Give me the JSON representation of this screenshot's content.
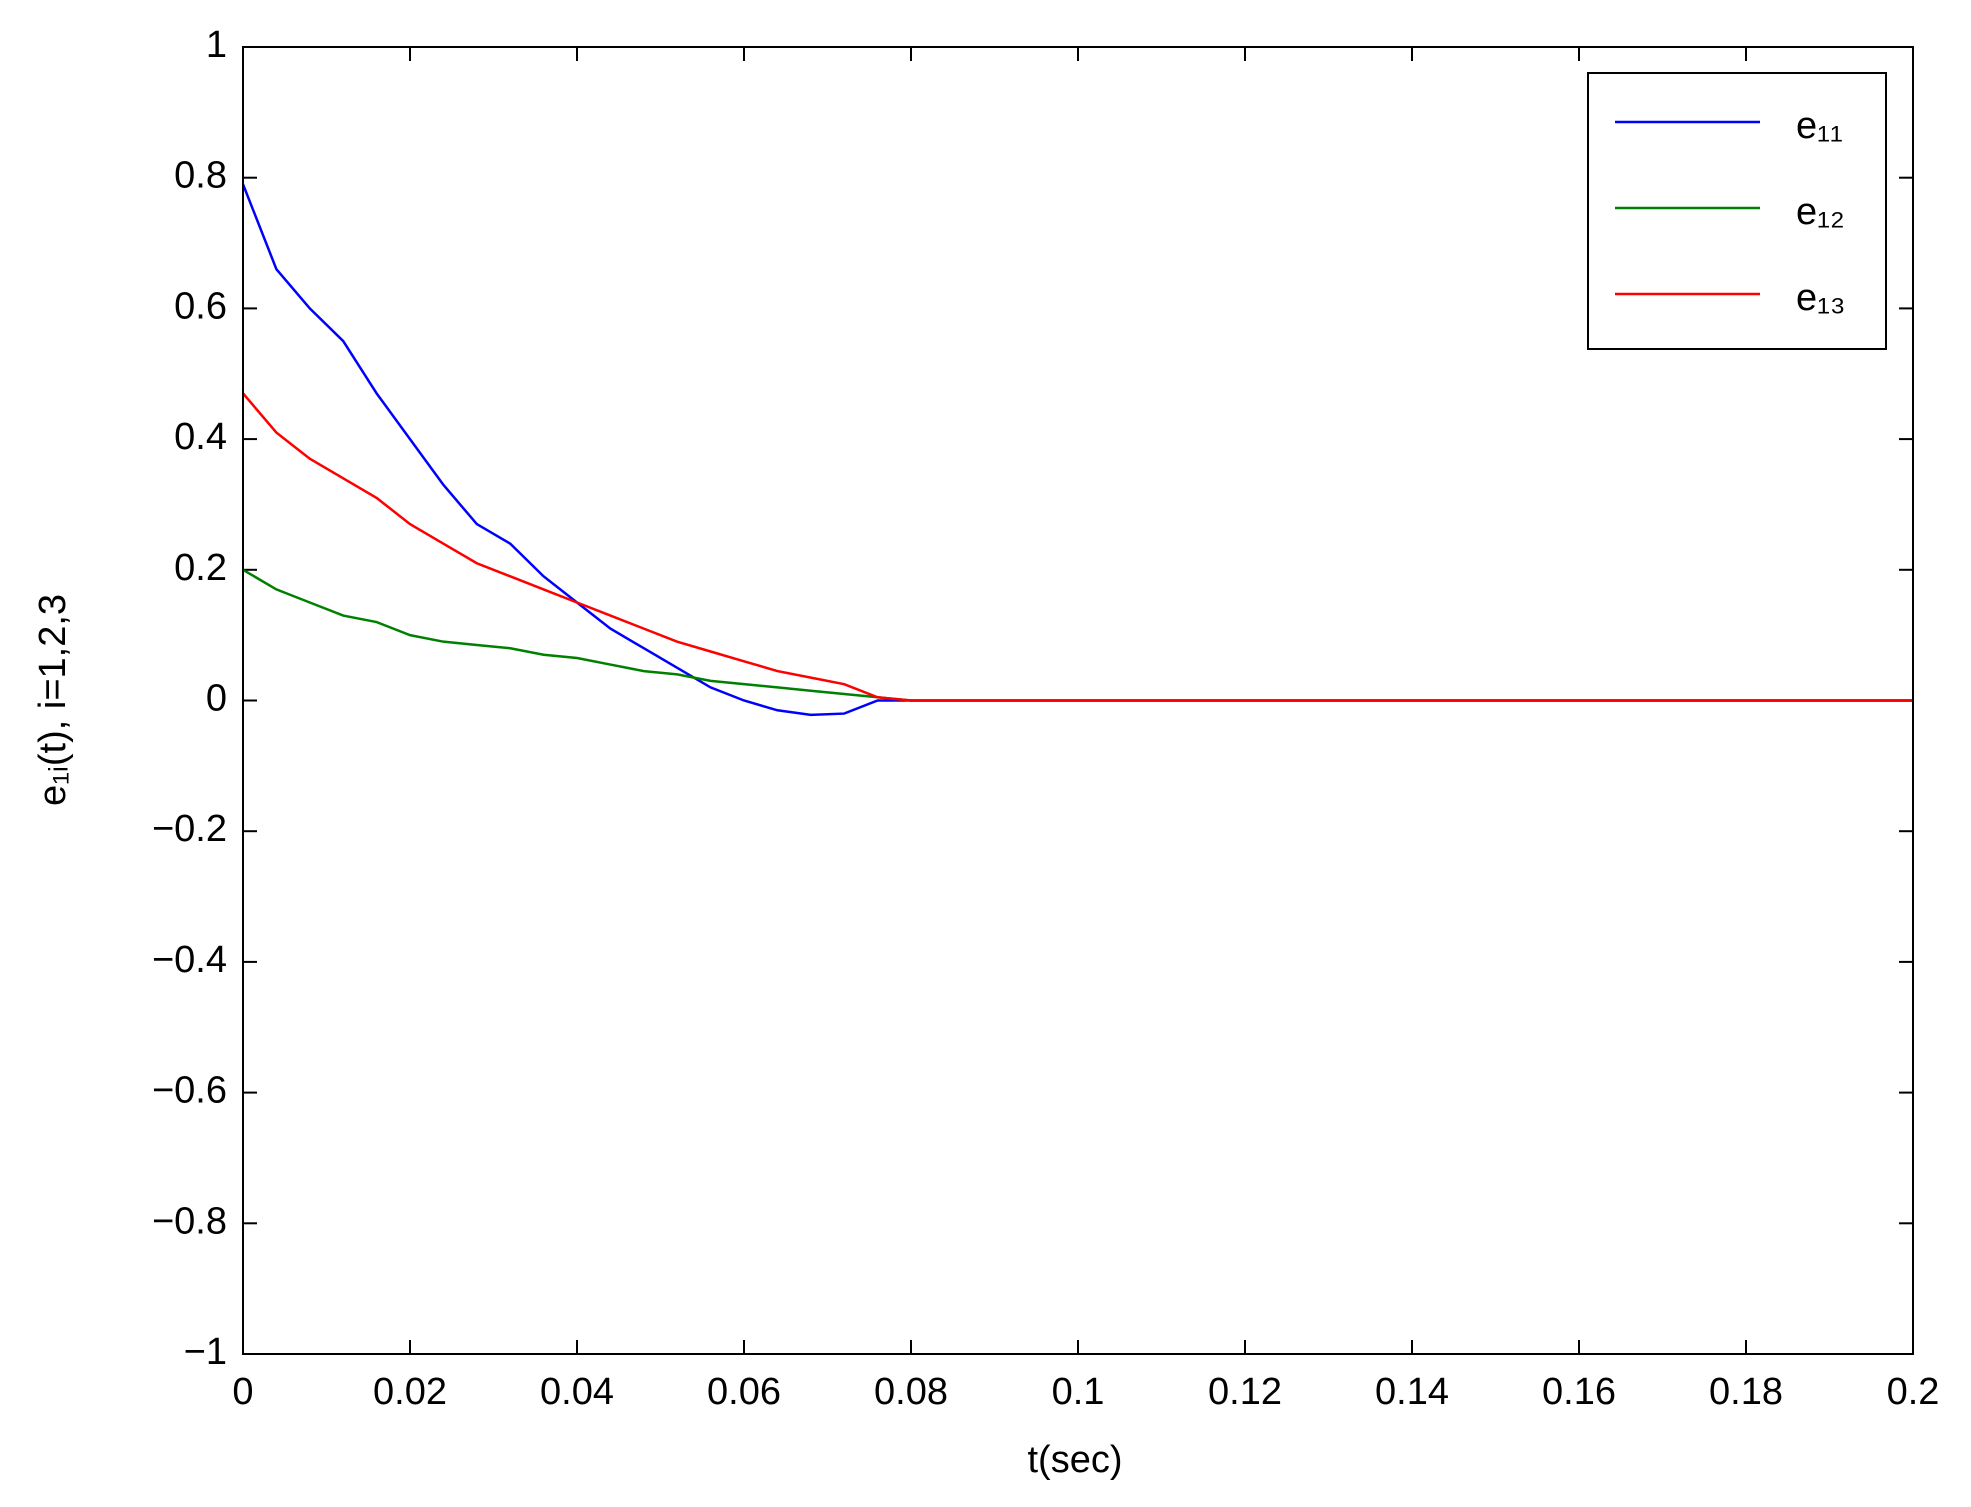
{
  "chart_data": {
    "type": "line",
    "xlabel": "t(sec)",
    "ylabel": "e₁ᵢ(t), i=1,2,3",
    "x": [
      0,
      0.004,
      0.008,
      0.012,
      0.016,
      0.02,
      0.024,
      0.028,
      0.032,
      0.036,
      0.04,
      0.044,
      0.048,
      0.052,
      0.056,
      0.06,
      0.064,
      0.068,
      0.072,
      0.076,
      0.08,
      0.1,
      0.12,
      0.14,
      0.16,
      0.18,
      0.2
    ],
    "series": [
      {
        "name": "e₁₁",
        "color": "#0000ff",
        "values": [
          0.79,
          0.66,
          0.6,
          0.55,
          0.47,
          0.4,
          0.33,
          0.27,
          0.24,
          0.19,
          0.15,
          0.11,
          0.08,
          0.05,
          0.02,
          0.0,
          -0.015,
          -0.022,
          -0.02,
          0,
          0,
          0,
          0,
          0,
          0,
          0,
          0
        ]
      },
      {
        "name": "e₁₂",
        "color": "#008000",
        "values": [
          0.2,
          0.17,
          0.15,
          0.13,
          0.12,
          0.1,
          0.09,
          0.085,
          0.08,
          0.07,
          0.065,
          0.055,
          0.045,
          0.04,
          0.03,
          0.025,
          0.02,
          0.015,
          0.01,
          0.005,
          0,
          0,
          0,
          0,
          0,
          0,
          0
        ]
      },
      {
        "name": "e₁₃",
        "color": "#ff0000",
        "values": [
          0.47,
          0.41,
          0.37,
          0.34,
          0.31,
          0.27,
          0.24,
          0.21,
          0.19,
          0.17,
          0.15,
          0.13,
          0.11,
          0.09,
          0.075,
          0.06,
          0.045,
          0.035,
          0.025,
          0.005,
          0,
          0,
          0,
          0,
          0,
          0,
          0
        ]
      }
    ],
    "xlim": [
      0,
      0.2
    ],
    "xticks": [
      0,
      0.02,
      0.04,
      0.06,
      0.08,
      0.1,
      0.12,
      0.14,
      0.16,
      0.18,
      0.2
    ],
    "ylim": [
      -1,
      1
    ],
    "yticks": [
      {
        "value": -1,
        "label": "−1"
      },
      {
        "value": -0.8,
        "label": "−0.8"
      },
      {
        "value": -0.6,
        "label": "−0.6"
      },
      {
        "value": -0.4,
        "label": "−0.4"
      },
      {
        "value": -0.2,
        "label": "−0.2"
      },
      0,
      0.2,
      0.4,
      0.6,
      0.8,
      1
    ],
    "grid": false,
    "legend": "upper-right"
  }
}
